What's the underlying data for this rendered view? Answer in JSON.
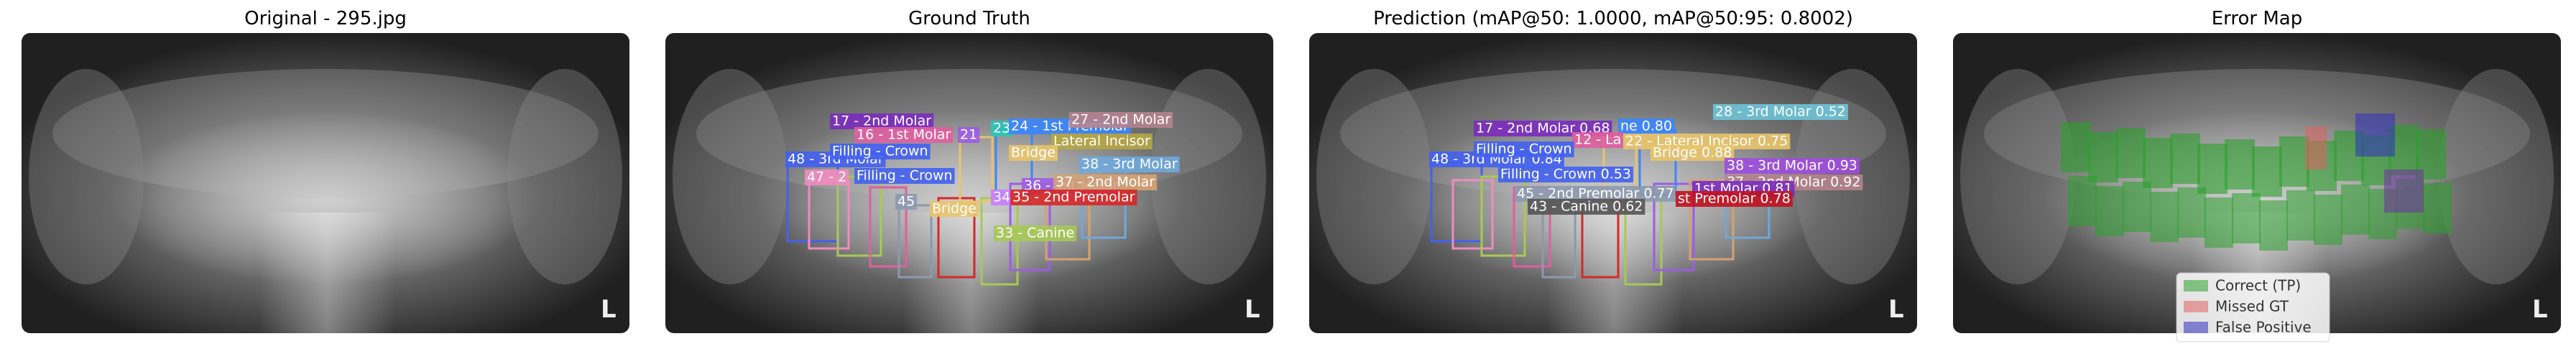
{
  "panels": [
    {
      "title": "Original - 295.jpg",
      "image_marker": "L"
    },
    {
      "title": "Ground Truth",
      "image_marker": "L",
      "labels": [
        "17 - 2nd Molar",
        "16 - 1st Molar",
        "21",
        "23",
        "24 - 1st Premolar",
        "27 - 2nd Molar",
        "48 - 3rd Molar",
        "Filling - Crown",
        "Lateral Incisor",
        "Bridge",
        "38 - 3rd Molar",
        "47 - 2",
        "Filling - Crown",
        "36 - 1st Molar",
        "37 - 2nd Molar",
        "Bridge",
        "34",
        "35 - 2nd Premolar",
        "45",
        "33 - Canine"
      ]
    },
    {
      "title": "Prediction (mAP@50: 1.0000, mAP@50:95: 0.8002)",
      "image_marker": "L",
      "labels": [
        "28 - 3rd Molar 0.52",
        "17 - 2nd Molar 0.68",
        "ne 0.80",
        "12 - La",
        "22 - Lateral Incisor 0.75",
        "Bridge 0.88",
        "48 - 3rd Molar 0.84",
        "Filling - Crown",
        "Filling - Crown 0.53",
        "38 - 3rd Molar 0.93",
        "37 - 2nd Molar 0.92",
        "1st Molar 0.81",
        "45 - 2nd Premolar 0.77",
        "st Premolar 0.78",
        "43 - Canine 0.62"
      ]
    },
    {
      "title": "Error Map",
      "image_marker": "L",
      "legend": [
        "Correct (TP)",
        "Missed GT",
        "False Positive"
      ]
    }
  ]
}
